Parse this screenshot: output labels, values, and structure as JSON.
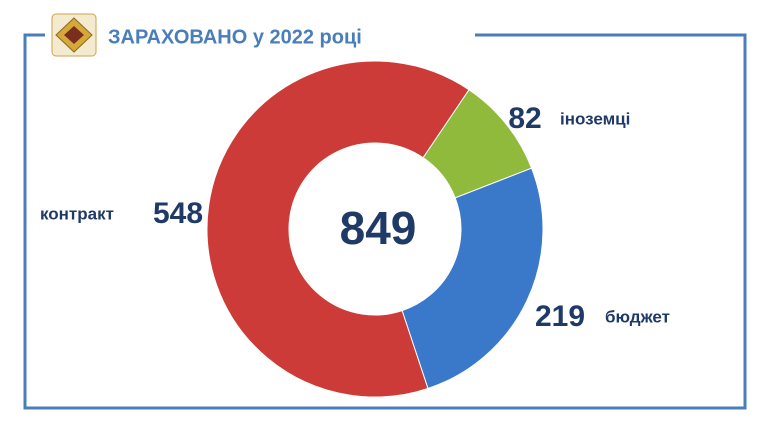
{
  "chart_data": {
    "type": "donut",
    "title": "ЗАРАХОВАНО у 2022 році",
    "total": 849,
    "categories": [
      "іноземці",
      "бюджет",
      "контракт"
    ],
    "values": [
      82,
      219,
      548
    ],
    "colors": [
      "#8fba3c",
      "#3a78c9",
      "#cc3b37"
    ]
  }
}
